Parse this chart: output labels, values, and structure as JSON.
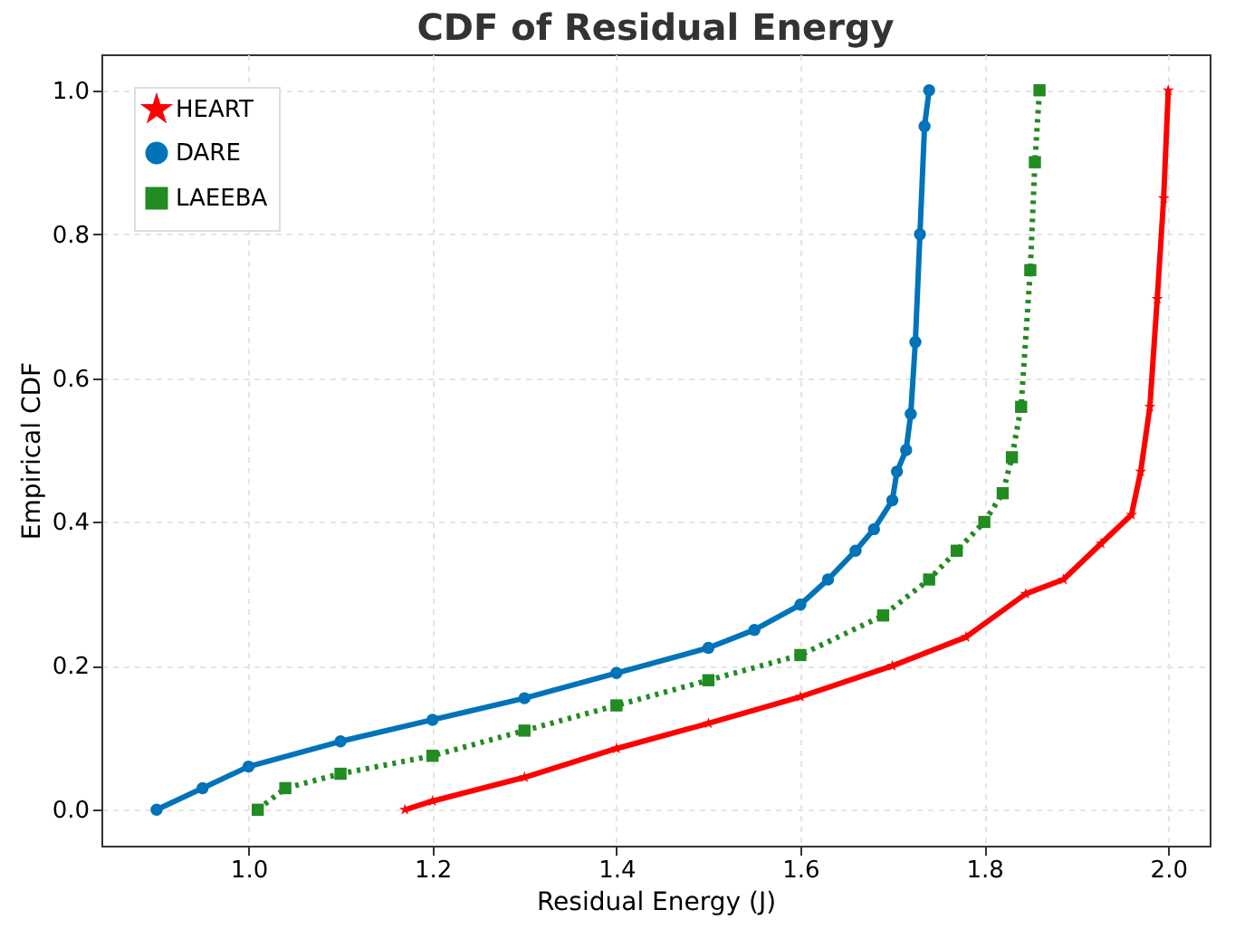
{
  "chart_data": {
    "type": "line",
    "title": "CDF of Residual Energy",
    "xlabel": "Residual Energy (J)",
    "ylabel": "Empirical CDF",
    "xlim": [
      0.84,
      2.045
    ],
    "ylim": [
      -0.05,
      1.05
    ],
    "xticks": [
      {
        "value": 1,
        "label": "1.0"
      },
      1.2,
      1.4,
      1.6,
      1.8,
      {
        "value": 2,
        "label": "2.0"
      }
    ],
    "yticks": [
      {
        "value": 0,
        "label": "0.0"
      },
      0.2,
      0.4,
      0.6,
      0.8,
      {
        "value": 1,
        "label": "1.0"
      }
    ],
    "grid": true,
    "legend": "top left",
    "series": [
      {
        "name": "HEART",
        "color": "#ff0000",
        "marker": "star",
        "line_style": "solid",
        "x": [
          1.17,
          1.2,
          1.3,
          1.4,
          1.5,
          1.6,
          1.7,
          1.78,
          1.845,
          1.886,
          1.927,
          1.96,
          1.97,
          1.98,
          1.988,
          1.995,
          2.0
        ],
        "values": [
          0,
          0.012,
          0.045,
          0.085,
          0.12,
          0.157,
          0.2,
          0.24,
          0.3,
          0.32,
          0.37,
          0.41,
          0.47,
          0.56,
          0.71,
          0.85,
          1.0
        ]
      },
      {
        "name": "DARE",
        "color": "#0173b8",
        "marker": "circle",
        "line_style": "solid",
        "x": [
          0.9,
          0.95,
          1.0,
          1.1,
          1.2,
          1.3,
          1.4,
          1.5,
          1.55,
          1.6,
          1.63,
          1.66,
          1.68,
          1.7,
          1.705,
          1.715,
          1.72,
          1.725,
          1.73,
          1.735,
          1.74
        ],
        "values": [
          0,
          0.03,
          0.06,
          0.095,
          0.125,
          0.155,
          0.19,
          0.225,
          0.25,
          0.285,
          0.32,
          0.36,
          0.39,
          0.43,
          0.47,
          0.5,
          0.55,
          0.65,
          0.8,
          0.95,
          1.0
        ]
      },
      {
        "name": "LAEEBA",
        "color": "#228b22",
        "marker": "square",
        "line_style": "dotted",
        "x": [
          1.01,
          1.04,
          1.1,
          1.2,
          1.3,
          1.4,
          1.5,
          1.6,
          1.69,
          1.74,
          1.77,
          1.8,
          1.82,
          1.83,
          1.84,
          1.85,
          1.855,
          1.86
        ],
        "values": [
          0,
          0.03,
          0.05,
          0.075,
          0.11,
          0.145,
          0.18,
          0.215,
          0.27,
          0.32,
          0.36,
          0.4,
          0.44,
          0.49,
          0.56,
          0.75,
          0.9,
          1.0
        ]
      }
    ]
  }
}
